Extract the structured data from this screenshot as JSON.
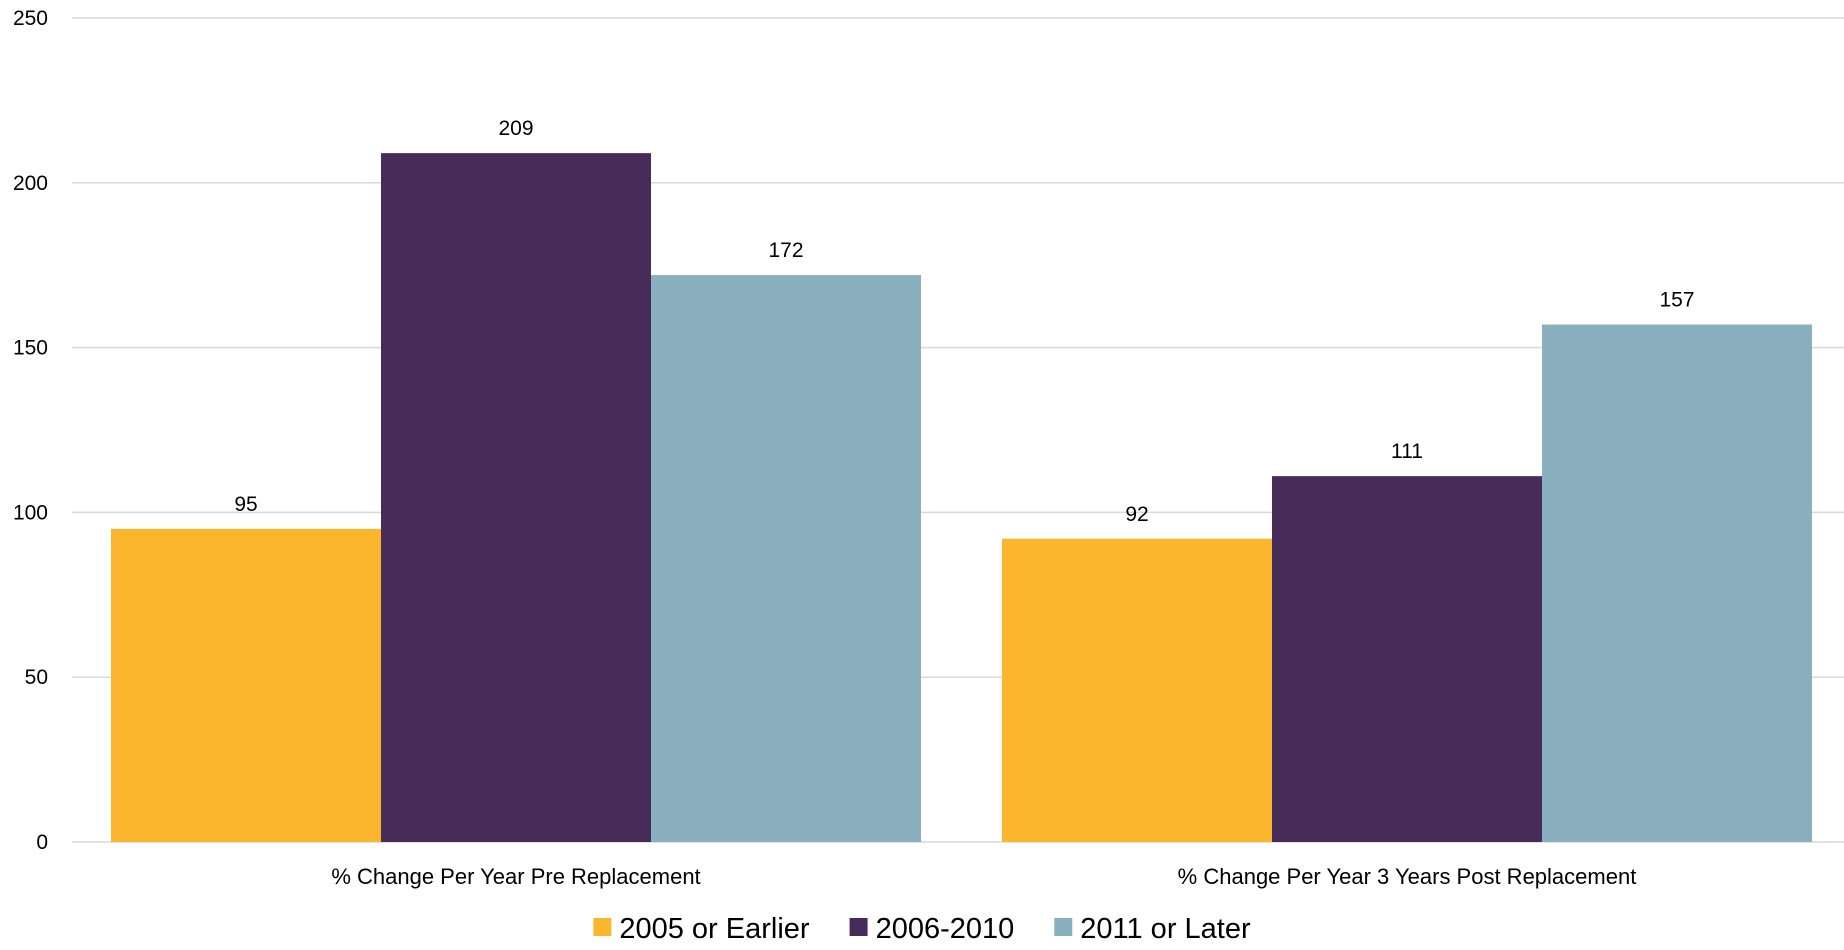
{
  "chart_data": {
    "type": "bar",
    "title": "",
    "xlabel": "",
    "ylabel": "",
    "categories": [
      "% Change Per Year Pre Replacement",
      "% Change Per Year 3 Years Post Replacement"
    ],
    "series": [
      {
        "name": "2005 or Earlier",
        "values": [
          95,
          92
        ],
        "color": "#FBB62E"
      },
      {
        "name": "2006-2010",
        "values": [
          209,
          111
        ],
        "color": "#472B58"
      },
      {
        "name": "2011 or Later",
        "values": [
          172,
          157
        ],
        "color": "#8AAFBF"
      }
    ],
    "ylim": [
      0,
      250
    ],
    "yticks": [
      0,
      50,
      100,
      150,
      200,
      250
    ],
    "grid": true,
    "legend_position": "bottom",
    "data_labels": true
  }
}
